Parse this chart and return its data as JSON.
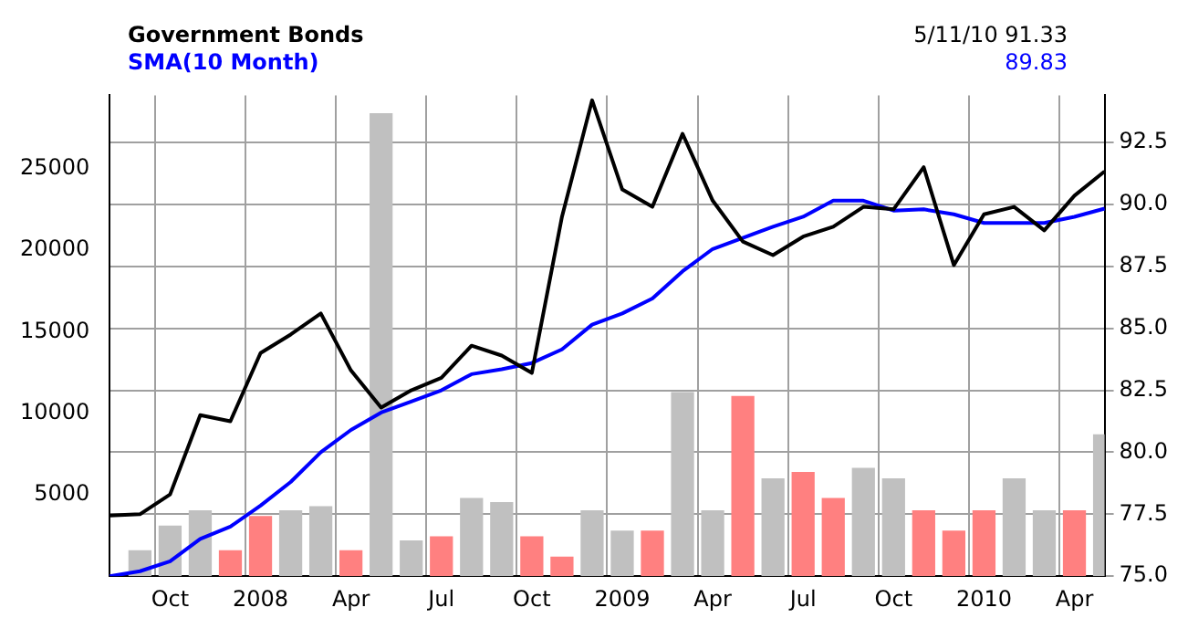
{
  "chart_data": {
    "type": "line",
    "title": "Government Bonds",
    "annotations": [
      "5/11/10 91.33",
      "89.83"
    ],
    "categories": [
      null,
      null,
      "Oct",
      null,
      null,
      "2008",
      null,
      null,
      "Apr",
      null,
      null,
      "Jul",
      null,
      null,
      "Oct",
      null,
      null,
      "2009",
      null,
      null,
      "Apr",
      null,
      null,
      "Jul",
      null,
      null,
      "Oct",
      null,
      null,
      "2010",
      null,
      null,
      "Apr",
      null
    ],
    "series": [
      {
        "type": "bar",
        "axis": "y",
        "colors": [
          "#c0c0c0",
          "#c0c0c0",
          "#c0c0c0",
          "#c0c0c0",
          "#ff8080",
          "#ff8080",
          "#c0c0c0",
          "#c0c0c0",
          "#ff8080",
          "#c0c0c0",
          "#c0c0c0",
          "#ff8080",
          "#c0c0c0",
          "#c0c0c0",
          "#ff8080",
          "#ff8080",
          "#c0c0c0",
          "#c0c0c0",
          "#ff8080",
          "#c0c0c0",
          "#c0c0c0",
          "#ff8080",
          "#c0c0c0",
          "#ff8080",
          "#ff8080",
          "#c0c0c0",
          "#c0c0c0",
          "#ff8080",
          "#ff8080",
          "#ff8080",
          "#c0c0c0",
          "#c0c0c0",
          "#ff8080",
          "#c0c0c0"
        ],
        "values": [
          null,
          1600,
          3100,
          4050,
          1600,
          3700,
          4050,
          4300,
          1600,
          28400,
          2200,
          2450,
          4800,
          4550,
          2450,
          1200,
          4050,
          2800,
          2800,
          11300,
          4050,
          11050,
          6000,
          6400,
          4800,
          6650,
          6000,
          4050,
          2800,
          4050,
          6000,
          4050,
          4050,
          8700
        ]
      },
      {
        "axis": "y2",
        "color": "#000000",
        "values": [
          77.45,
          77.5,
          78.3,
          81.5,
          81.25,
          84.0,
          84.75,
          85.6,
          83.3,
          81.8,
          82.5,
          83.0,
          84.3,
          83.9,
          83.2,
          89.5,
          94.2,
          90.6,
          89.9,
          92.85,
          90.15,
          88.5,
          87.95,
          88.7,
          89.1,
          89.9,
          89.8,
          91.5,
          87.55,
          89.6,
          89.9,
          88.95,
          90.35,
          91.33
        ]
      },
      {
        "axis": "y2",
        "name": "SMA(10 Month)",
        "color": "#0000ff",
        "values": [
          75.0,
          75.2,
          75.6,
          76.5,
          77.0,
          77.85,
          78.8,
          80.0,
          80.9,
          81.6,
          82.05,
          82.5,
          83.15,
          83.35,
          83.6,
          84.15,
          85.15,
          85.6,
          86.2,
          87.3,
          88.2,
          88.65,
          89.1,
          89.5,
          90.15,
          90.15,
          89.75,
          89.8,
          89.6,
          89.25,
          89.25,
          89.25,
          89.5,
          89.83
        ]
      }
    ],
    "ylim": [
      0,
      29500
    ],
    "yticks": [
      5000,
      10000,
      15000,
      20000,
      25000
    ],
    "y2lim": [
      75,
      94.4
    ],
    "y2ticks": [
      {
        "value": 75,
        "label": "75.0"
      },
      {
        "value": 77.5,
        "label": "77.5"
      },
      {
        "value": 80,
        "label": "80.0"
      },
      {
        "value": 82.5,
        "label": "82.5"
      },
      {
        "value": 85,
        "label": "85.0"
      },
      {
        "value": 87.5,
        "label": "87.5"
      },
      {
        "value": 90,
        "label": "90.0"
      },
      {
        "value": 92.5,
        "label": "92.5"
      }
    ],
    "grid": true,
    "legend": false,
    "marker": "none",
    "line_style": "solid"
  }
}
